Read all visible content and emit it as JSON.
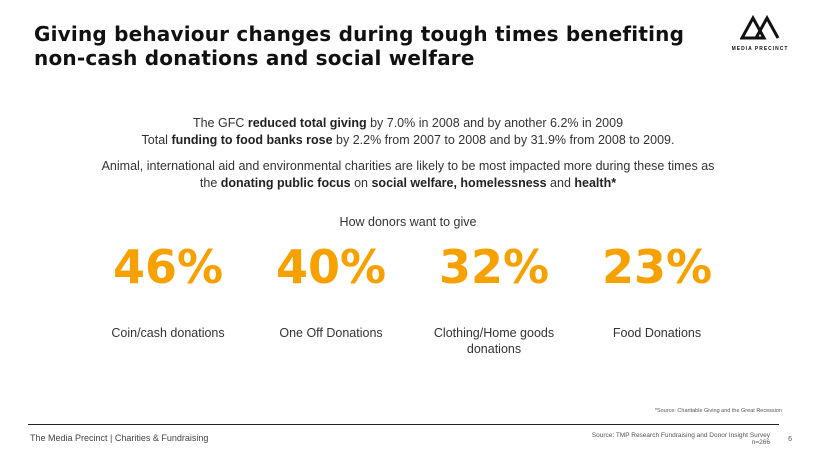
{
  "title_line1": "Giving behaviour changes during tough times benefiting",
  "title_line2": "non-cash donations and social welfare",
  "logo": {
    "top": "THE",
    "name": "MEDIA PRECINCT"
  },
  "p1": {
    "a": "The GFC ",
    "b": "reduced total giving",
    "c": " by 7.0% in 2008 and by another 6.2% in 2009"
  },
  "p2": {
    "a": "Total ",
    "b": "funding to food banks rose",
    "c": " by 2.2% from 2007 to 2008 and by 31.9% from 2008 to 2009."
  },
  "p3": "Animal, international aid and environmental charities are likely to be most impacted more during these times as",
  "p4": {
    "a": "the ",
    "b": "donating public focus",
    "c": " on ",
    "d": "social welfare, homelessness",
    "e": " and ",
    "f": "health*"
  },
  "subhead": "How donors want to give",
  "stats": [
    {
      "value": "46%",
      "label": "Coin/cash donations"
    },
    {
      "value": "40%",
      "label": "One Off Donations"
    },
    {
      "value": "32%",
      "label": "Clothing/Home goods donations"
    },
    {
      "value": "23%",
      "label": "Food Donations"
    }
  ],
  "footnote": "*Source: Charitable Giving and the Great Recession",
  "footer_left": "The Media Precinct  |  Charities & Fundraising",
  "source": "Source: TMP Research Fundraising and Donor Insight Survey",
  "n": "n=266",
  "page": "6",
  "accent": "#F7A100"
}
